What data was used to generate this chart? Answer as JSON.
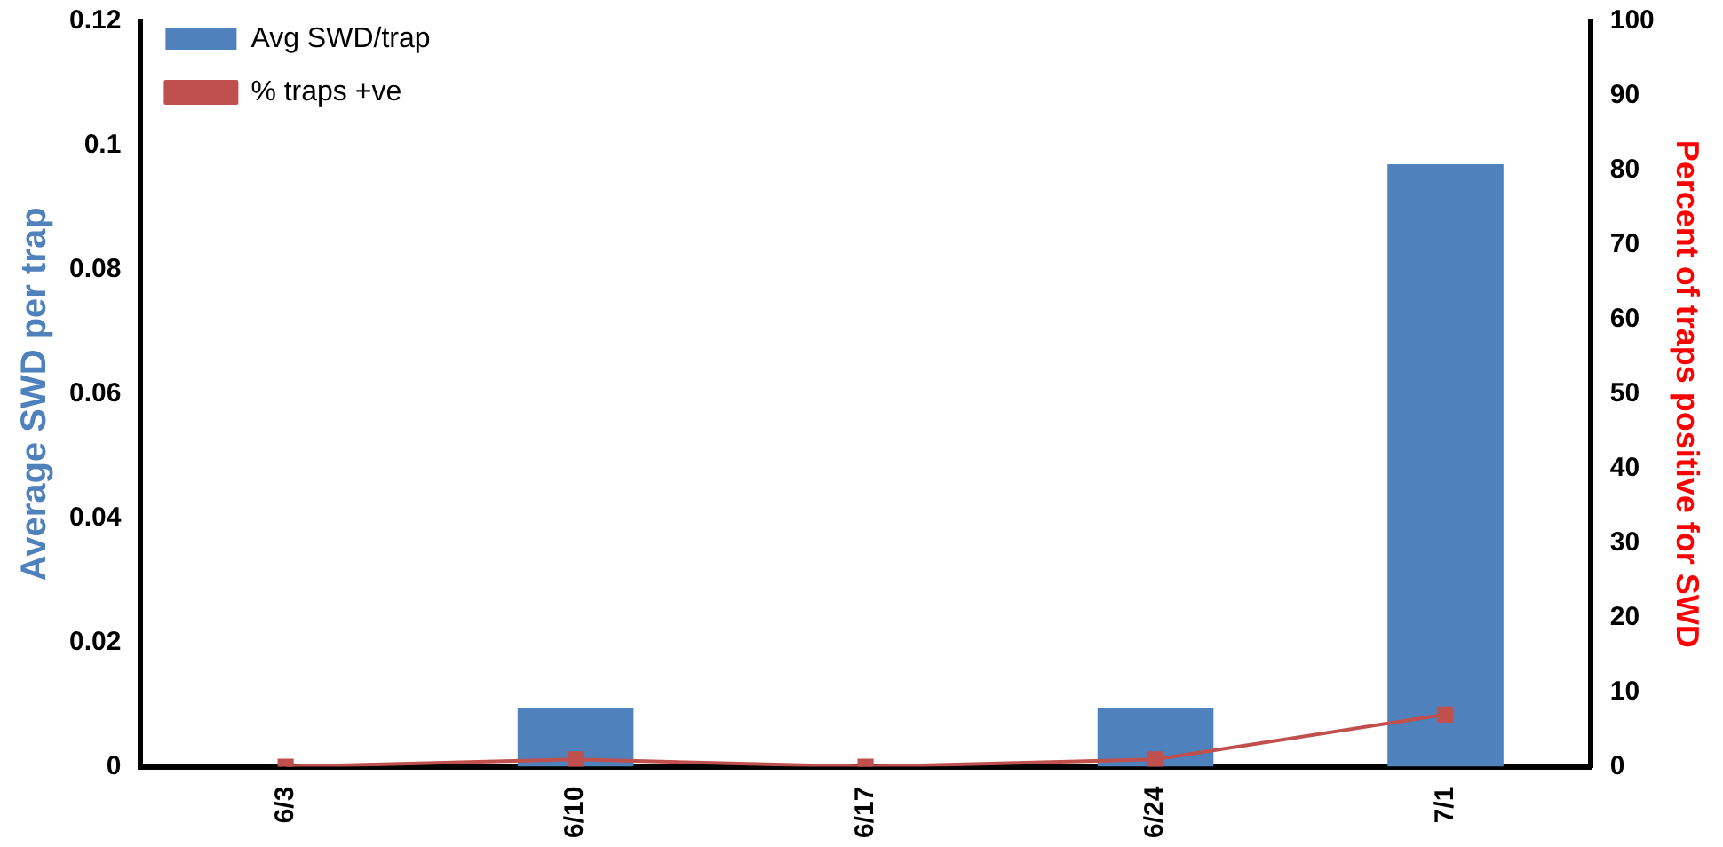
{
  "chart_data": {
    "type": "bar",
    "ylabel": "Average SWD per trap",
    "y2label": "Percent of traps positive for SWD",
    "categories": [
      "6/3",
      "6/10",
      "6/17",
      "6/24",
      "7/1"
    ],
    "series": [
      {
        "name": "Avg SWD/trap",
        "color": "#4f81bd",
        "values": [
          0,
          0.0095,
          0,
          0.0095,
          0.097
        ]
      },
      {
        "name": "% traps +ve",
        "type": "line",
        "axis": "y2",
        "color": "#c0504d",
        "marker": "square",
        "values": [
          0,
          1,
          0,
          1,
          7
        ]
      }
    ],
    "ylim": [
      0,
      0.12
    ],
    "yticks": [
      0,
      0.02,
      0.04,
      0.06,
      0.08,
      0.1,
      0.12
    ],
    "y2lim": [
      0,
      100
    ],
    "y2ticks": [
      0,
      10,
      20,
      30,
      40,
      50,
      60,
      70,
      80,
      90,
      100
    ],
    "legend": "top left",
    "grid": false
  }
}
